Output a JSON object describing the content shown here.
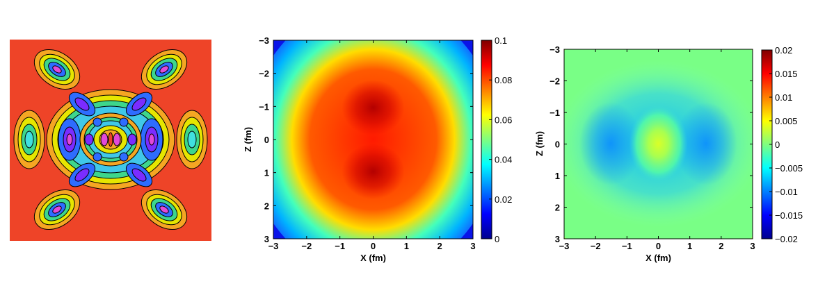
{
  "chart_data": [
    {
      "type": "heatmap",
      "panel": "left",
      "title": "",
      "xlabel": "",
      "ylabel": "",
      "field": "contour-map-of-wavefunction-density",
      "colors": {
        "background": "#ee4428",
        "contour_line": "#000000"
      }
    },
    {
      "type": "heatmap",
      "panel": "middle",
      "title": "",
      "xlabel": "X (fm)",
      "ylabel": "Z (fm)",
      "xlim": [
        -3,
        3
      ],
      "ylim": [
        3,
        -3
      ],
      "xticks": [
        "−3",
        "−2",
        "−1",
        "0",
        "1",
        "2",
        "3"
      ],
      "yticks": [
        "−3",
        "−2",
        "−1",
        "0",
        "1",
        "2",
        "3"
      ],
      "colorbar": {
        "min": 0,
        "max": 0.1,
        "ticks": [
          "0.1",
          "0.08",
          "0.06",
          "0.04",
          "0.02",
          "0"
        ]
      },
      "peaks": [
        {
          "x": 0,
          "z": -1,
          "value": 0.1
        },
        {
          "x": 0,
          "z": 1,
          "value": 0.1
        }
      ]
    },
    {
      "type": "heatmap",
      "panel": "right",
      "title": "",
      "xlabel": "X (fm)",
      "ylabel": "Z (fm)",
      "xlim": [
        -3,
        3
      ],
      "ylim": [
        3,
        -3
      ],
      "xticks": [
        "−3",
        "−2",
        "−1",
        "0",
        "1",
        "2",
        "3"
      ],
      "yticks": [
        "−3",
        "−2",
        "−1",
        "0",
        "1",
        "2",
        "3"
      ],
      "colorbar": {
        "min": -0.02,
        "max": 0.02,
        "ticks": [
          "0.02",
          "0.015",
          "0.01",
          "0.005",
          "0",
          "−0.005",
          "−0.01",
          "−0.015",
          "−0.02"
        ]
      },
      "center_value": 0,
      "edge_value": -0.003,
      "minima": [
        {
          "x": -1.5,
          "z": 0,
          "value": -0.012
        },
        {
          "x": 1.5,
          "z": 0,
          "value": -0.012
        }
      ]
    }
  ]
}
